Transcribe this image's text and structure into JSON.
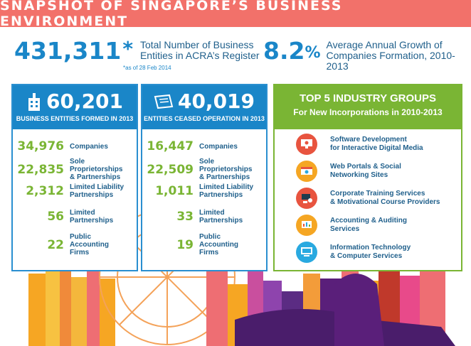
{
  "title": "SNAPSHOT OF SINGAPORE’S BUSINESS ENVIRONMENT",
  "stat1": {
    "value": "431,311",
    "asterisk": "*",
    "label_line1": "Total Number of Business",
    "label_line2": "Entities in ACRA’s Register",
    "note": "*as of 28 Feb 2014"
  },
  "stat2": {
    "value": "8.2",
    "unit": "%",
    "label_line1": "Average Annual Growth of",
    "label_line2": "Companies Formation, 2010-2013"
  },
  "formed": {
    "value": "60,201",
    "subtitle": "BUSINESS ENTITIES FORMED IN 2013",
    "icon": "building-icon",
    "rows": [
      {
        "value": "34,976",
        "line1": "Companies",
        "line2": "",
        "line3": ""
      },
      {
        "value": "22,835",
        "line1": "Sole Proprietorships",
        "line2": "& Partnerships",
        "line3": ""
      },
      {
        "value": "2,312",
        "line1": "Limited Liability",
        "line2": "Partnerships",
        "line3": ""
      },
      {
        "value": "56",
        "line1": "Limited",
        "line2": "Partnerships",
        "line3": ""
      },
      {
        "value": "22",
        "line1": "Public",
        "line2": "Accounting",
        "line3": "Firms"
      }
    ]
  },
  "ceased": {
    "value": "40,019",
    "subtitle": "ENTITIES CEASED OPERATION IN 2013",
    "icon": "document-icon",
    "rows": [
      {
        "value": "16,447",
        "line1": "Companies",
        "line2": "",
        "line3": ""
      },
      {
        "value": "22,509",
        "line1": "Sole Proprietorships",
        "line2": "& Partnerships",
        "line3": ""
      },
      {
        "value": "1,011",
        "line1": "Limited Liability",
        "line2": "Partnerships",
        "line3": ""
      },
      {
        "value": "33",
        "line1": "Limited",
        "line2": "Partnerships",
        "line3": ""
      },
      {
        "value": "19",
        "line1": "Public",
        "line2": "Accounting",
        "line3": "Firms"
      }
    ]
  },
  "top5": {
    "title": "TOP 5 INDUSTRY GROUPS",
    "subtitle": "For New Incorporations in 2010-2013",
    "items": [
      {
        "line1": "Software Development",
        "line2": "for Interactive Digital Media",
        "icon": "monitor-media-icon",
        "color": "#e8543f"
      },
      {
        "line1": "Web Portals & Social",
        "line2": "Networking Sites",
        "icon": "web-portal-icon",
        "color": "#f5a623"
      },
      {
        "line1": "Corporate Training Services",
        "line2": "& Motivational Course Providers",
        "icon": "training-icon",
        "color": "#e8543f"
      },
      {
        "line1": "Accounting & Auditing",
        "line2": "Services",
        "icon": "accounting-icon",
        "color": "#f5a623"
      },
      {
        "line1": "Information Technology",
        "line2": "& Computer Services",
        "icon": "computer-icon",
        "color": "#29a9e0"
      }
    ]
  },
  "colors": {
    "blue": "#1a86c8",
    "green": "#7ab534",
    "coral": "#f2716a",
    "navy": "#1f5f8b"
  }
}
